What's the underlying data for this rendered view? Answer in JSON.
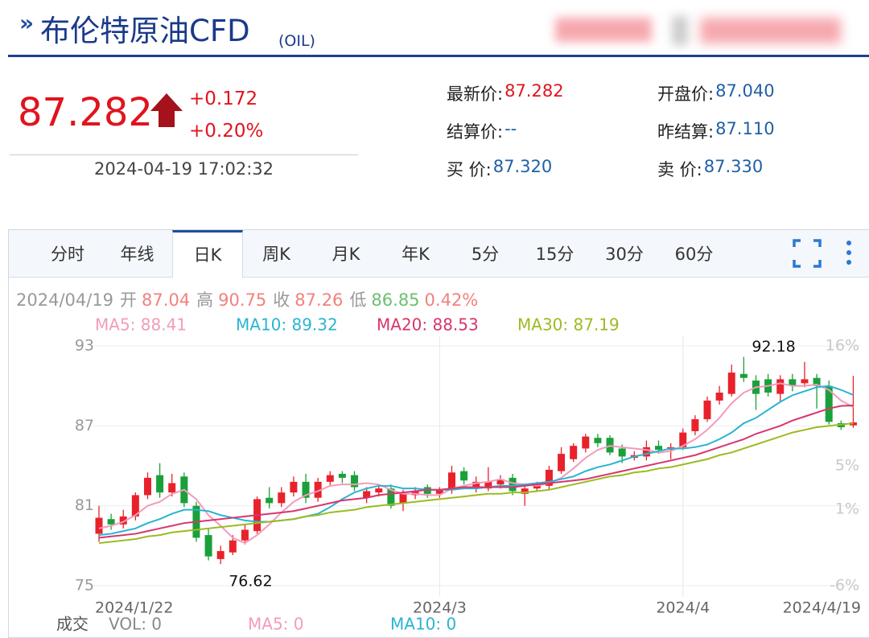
{
  "header": {
    "title": "布伦特原油CFD",
    "code": "(OIL)"
  },
  "quote": {
    "price": "87.282",
    "change": "+0.172",
    "change_pct": "+0.20%",
    "time": "2024-04-19 17:02:32",
    "fields": [
      {
        "label": "最新价:",
        "value": "87.282",
        "color": "#e0141e"
      },
      {
        "label": "开盘价:",
        "value": "87.040",
        "color": "#1f5fa6"
      },
      {
        "label": "结算价:",
        "value": "--",
        "color": "#1f5fa6"
      },
      {
        "label": "昨结算:",
        "value": "87.110",
        "color": "#1f5fa6"
      },
      {
        "label": "买 价:",
        "value": "87.320",
        "color": "#1f5fa6"
      },
      {
        "label": "卖 价:",
        "value": "87.330",
        "color": "#1f5fa6"
      }
    ]
  },
  "tabs": [
    "分时",
    "年线",
    "日K",
    "周K",
    "月K",
    "年K",
    "5分",
    "15分",
    "30分",
    "60分"
  ],
  "active_tab": "日K",
  "chart_data": {
    "type": "candlestick",
    "info": {
      "date": "2024/04/19",
      "open_label": "开",
      "high_label": "高",
      "close_label": "收",
      "low_label": "低",
      "change_pct": "0.42%"
    },
    "categories": [
      "2024/1/22",
      null,
      null,
      null,
      null,
      null,
      null,
      null,
      null,
      null,
      null,
      null,
      null,
      null,
      null,
      null,
      null,
      null,
      null,
      null,
      null,
      null,
      null,
      null,
      null,
      null,
      null,
      null,
      "2024/3",
      null,
      null,
      null,
      null,
      null,
      null,
      null,
      null,
      null,
      null,
      null,
      null,
      null,
      null,
      null,
      null,
      null,
      null,
      null,
      "2024/4",
      null,
      null,
      null,
      null,
      null,
      null,
      null,
      null,
      null,
      null,
      null,
      null,
      null,
      "2024/4/19"
    ],
    "open": [
      78.9,
      80.0,
      79.6,
      80.2,
      81.8,
      83.3,
      82.0,
      83.2,
      81.0,
      78.8,
      77.0,
      77.5,
      78.4,
      79.1,
      81.6,
      81.2,
      82.0,
      82.8,
      81.6,
      82.8,
      83.4,
      83.3,
      81.6,
      82.0,
      82.3,
      81.2,
      81.8,
      82.4,
      81.9,
      82.2,
      83.6,
      82.3,
      82.3,
      82.6,
      83.1,
      81.9,
      82.3,
      82.5,
      83.6,
      84.5,
      85.3,
      86.1,
      86.1,
      85.3,
      84.6,
      84.7,
      85.5,
      85.2,
      85.4,
      86.6,
      87.5,
      88.9,
      89.4,
      90.9,
      90.4,
      90.5,
      89.4,
      90.5,
      90.2,
      90.6,
      90.0,
      87.2,
      87.04
    ],
    "high": [
      81.0,
      80.4,
      80.7,
      82.0,
      83.5,
      84.2,
      83.4,
      83.5,
      81.3,
      79.3,
      78.0,
      78.8,
      79.6,
      81.7,
      82.4,
      82.4,
      83.2,
      83.4,
      83.1,
      83.6,
      83.6,
      83.6,
      82.4,
      82.6,
      82.6,
      82.2,
      82.4,
      82.6,
      82.4,
      84.0,
      83.9,
      83.2,
      83.9,
      83.3,
      83.4,
      82.6,
      82.8,
      84.0,
      85.4,
      85.7,
      86.4,
      86.4,
      86.3,
      85.6,
      85.1,
      85.9,
      85.9,
      85.7,
      86.8,
      87.8,
      89.2,
      90.0,
      91.6,
      92.18,
      90.8,
      90.9,
      90.8,
      90.9,
      91.8,
      90.9,
      90.4,
      87.4,
      90.75
    ],
    "low": [
      78.3,
      79.2,
      79.3,
      79.9,
      81.5,
      81.6,
      81.7,
      80.9,
      78.3,
      76.9,
      76.62,
      77.3,
      78.1,
      78.9,
      80.8,
      80.9,
      81.7,
      81.2,
      81.3,
      82.5,
      82.7,
      82.1,
      81.2,
      81.7,
      80.8,
      80.6,
      81.5,
      81.6,
      81.6,
      81.9,
      82.6,
      82.0,
      82.1,
      82.3,
      81.8,
      81.0,
      82.1,
      82.2,
      83.4,
      84.3,
      85.0,
      85.4,
      84.8,
      84.2,
      84.4,
      84.4,
      84.9,
      84.5,
      85.2,
      86.3,
      87.3,
      88.6,
      89.2,
      90.3,
      88.2,
      89.2,
      88.8,
      89.6,
      89.9,
      88.3,
      87.1,
      86.7,
      86.85
    ],
    "close": [
      80.1,
      79.6,
      80.2,
      81.8,
      83.1,
      82.0,
      82.7,
      81.2,
      78.6,
      77.2,
      77.6,
      78.4,
      79.2,
      81.5,
      81.2,
      82.0,
      82.8,
      81.6,
      82.8,
      83.3,
      83.1,
      82.4,
      82.1,
      82.3,
      81.0,
      81.9,
      82.1,
      81.9,
      82.2,
      83.5,
      82.9,
      82.8,
      82.8,
      83.0,
      82.1,
      82.3,
      82.5,
      83.7,
      84.9,
      85.5,
      86.2,
      85.7,
      85.0,
      84.7,
      84.8,
      85.4,
      85.2,
      85.4,
      86.5,
      87.5,
      88.9,
      89.5,
      91.0,
      90.6,
      89.4,
      89.5,
      90.5,
      90.0,
      90.5,
      90.0,
      87.3,
      86.9,
      87.26
    ],
    "up_color": "#e8222b",
    "down_color": "#1aa03a",
    "series": [
      {
        "name": "MA5",
        "legend": "MA5: 88.41",
        "color": "#f29cbb",
        "values": [
          79.3,
          79.5,
          79.8,
          80.3,
          81.0,
          81.3,
          81.9,
          82.2,
          81.5,
          80.3,
          79.5,
          78.6,
          78.2,
          78.8,
          79.6,
          80.5,
          81.3,
          81.8,
          82.1,
          82.5,
          82.6,
          82.6,
          82.7,
          82.6,
          82.2,
          81.9,
          81.9,
          81.8,
          81.8,
          82.3,
          82.5,
          82.7,
          82.8,
          83.0,
          82.7,
          82.6,
          82.5,
          82.7,
          83.1,
          83.8,
          84.6,
          85.2,
          85.5,
          85.4,
          85.3,
          85.2,
          85.0,
          85.1,
          85.5,
          86.0,
          86.7,
          87.6,
          88.7,
          89.5,
          89.9,
          90.0,
          90.2,
          90.0,
          90.0,
          90.1,
          89.7,
          88.9,
          88.41
        ]
      },
      {
        "name": "MA10",
        "legend": "MA10: 89.32",
        "color": "#2ab4d2",
        "values": [
          78.8,
          78.9,
          79.1,
          79.3,
          79.7,
          80.0,
          80.4,
          80.7,
          80.7,
          80.6,
          80.3,
          80.1,
          79.9,
          79.8,
          79.8,
          79.9,
          80.0,
          80.2,
          80.4,
          80.9,
          81.5,
          82.0,
          82.3,
          82.5,
          82.5,
          82.3,
          82.3,
          82.2,
          82.2,
          82.2,
          82.3,
          82.3,
          82.4,
          82.5,
          82.5,
          82.6,
          82.7,
          82.8,
          83.0,
          83.2,
          83.6,
          83.9,
          84.1,
          84.4,
          84.7,
          84.9,
          85.1,
          85.3,
          85.3,
          85.4,
          85.6,
          86.0,
          86.5,
          87.2,
          87.6,
          88.2,
          88.8,
          89.3,
          89.6,
          89.9,
          90.0,
          89.7,
          89.32
        ]
      },
      {
        "name": "MA20",
        "legend": "MA20: 88.53",
        "color": "#d8356e",
        "values": [
          78.6,
          78.7,
          78.8,
          78.9,
          79.1,
          79.3,
          79.5,
          79.7,
          79.8,
          79.9,
          80.0,
          80.1,
          80.2,
          80.3,
          80.4,
          80.5,
          80.6,
          80.8,
          81.0,
          81.2,
          81.4,
          81.5,
          81.6,
          81.8,
          81.9,
          82.0,
          82.1,
          82.2,
          82.2,
          82.3,
          82.4,
          82.4,
          82.4,
          82.4,
          82.4,
          82.5,
          82.6,
          82.7,
          82.8,
          82.9,
          83.0,
          83.2,
          83.4,
          83.6,
          83.8,
          84.0,
          84.2,
          84.4,
          84.6,
          84.8,
          85.1,
          85.4,
          85.7,
          86.0,
          86.4,
          86.7,
          87.0,
          87.4,
          87.7,
          88.0,
          88.3,
          88.5,
          88.53
        ]
      },
      {
        "name": "MA30",
        "legend": "MA30: 87.19",
        "color": "#9bbb23",
        "values": [
          78.2,
          78.3,
          78.4,
          78.5,
          78.7,
          78.8,
          79.0,
          79.1,
          79.2,
          79.3,
          79.4,
          79.5,
          79.6,
          79.7,
          79.8,
          79.9,
          80.0,
          80.2,
          80.3,
          80.5,
          80.6,
          80.7,
          80.9,
          81.0,
          81.1,
          81.2,
          81.3,
          81.4,
          81.5,
          81.6,
          81.7,
          81.8,
          81.9,
          81.9,
          82.0,
          82.0,
          82.1,
          82.2,
          82.4,
          82.6,
          82.8,
          83.0,
          83.2,
          83.3,
          83.5,
          83.6,
          83.8,
          83.9,
          84.1,
          84.3,
          84.5,
          84.8,
          85.0,
          85.3,
          85.6,
          85.9,
          86.2,
          86.5,
          86.7,
          86.9,
          87.0,
          87.1,
          87.19
        ]
      }
    ],
    "ylim": [
      75,
      93
    ],
    "yticks": [
      75,
      81,
      87,
      93
    ],
    "y2lim": [
      -6,
      16
    ],
    "y2ticks": [
      {
        "value": 16,
        "label": "16%"
      },
      {
        "value": 5,
        "label": "5%"
      },
      {
        "value": 1,
        "label": "1%"
      },
      {
        "value": -6,
        "label": "-6%"
      }
    ],
    "grid": true,
    "volume": {
      "title": "成交",
      "labels": [
        {
          "text": "VOL: 0",
          "color": "#888888"
        },
        {
          "text": "MA5: 0",
          "color": "#f29cbb"
        },
        {
          "text": "MA10: 0",
          "color": "#2ab4d2"
        }
      ]
    }
  }
}
